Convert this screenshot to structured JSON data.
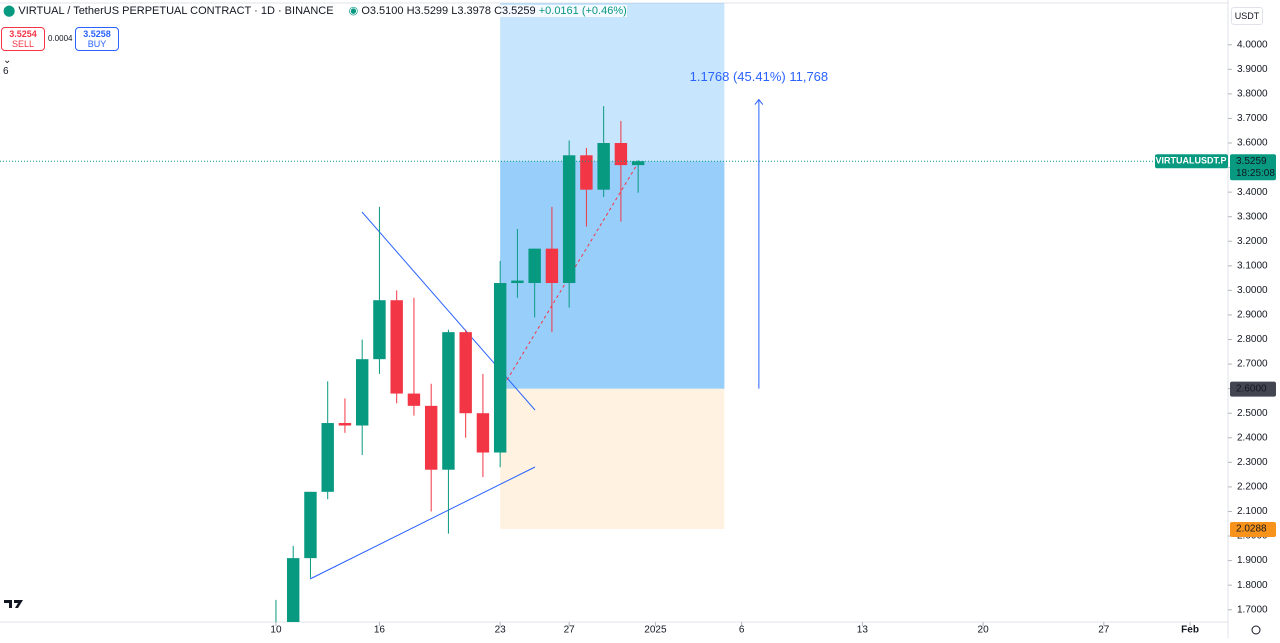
{
  "header": {
    "title": "VIRTUAL / TetherUS PERPETUAL CONTRACT · 1D · BINANCE",
    "open": "O3.5100",
    "high": "H3.5299",
    "low": "L3.3978",
    "close": "C3.5259",
    "change": "+0.0161 (+0.46%)",
    "sell_price": "3.5254",
    "sell": "SELL",
    "spread": "0.0004",
    "buy_price": "3.5258",
    "buy": "BUY",
    "indicators": "6",
    "currency": "USDT"
  },
  "chart_data": {
    "type": "candlestick",
    "x": [
      10,
      11,
      12,
      13,
      14,
      15,
      16,
      17,
      18,
      19,
      20,
      21,
      22,
      23,
      24,
      25,
      26,
      27,
      28,
      29,
      30,
      31
    ],
    "open": [
      1.6,
      1.62,
      1.91,
      2.18,
      2.46,
      2.45,
      2.72,
      2.96,
      2.58,
      2.53,
      2.27,
      2.83,
      2.5,
      2.34,
      3.03,
      3.03,
      3.17,
      3.03,
      3.55,
      3.41,
      3.6,
      3.51
    ],
    "high": [
      1.74,
      1.96,
      2.18,
      2.63,
      2.56,
      2.8,
      3.34,
      3.0,
      2.97,
      2.62,
      2.84,
      2.84,
      2.66,
      3.12,
      3.25,
      3.17,
      3.34,
      3.61,
      3.58,
      3.75,
      3.69,
      3.5299
    ],
    "low": [
      1.55,
      1.6,
      1.83,
      2.15,
      2.42,
      2.33,
      2.66,
      2.54,
      2.49,
      2.1,
      2.01,
      2.4,
      2.24,
      2.28,
      2.97,
      2.89,
      2.83,
      2.93,
      3.26,
      3.38,
      3.28,
      3.3978
    ],
    "close": [
      1.62,
      1.91,
      2.18,
      2.46,
      2.45,
      2.72,
      2.96,
      2.58,
      2.53,
      2.27,
      2.83,
      2.5,
      2.34,
      3.03,
      3.04,
      3.17,
      3.03,
      3.55,
      3.41,
      3.6,
      3.51,
      3.5259
    ],
    "up_color": "#089981",
    "down_color": "#f23645",
    "xlim": [
      -6,
      65.2
    ],
    "ylim": [
      1.65,
      4.17
    ],
    "xticks": [
      {
        "value": 10,
        "label": "10"
      },
      {
        "value": 16,
        "label": "16"
      },
      {
        "value": 23,
        "label": "23"
      },
      {
        "value": 27,
        "label": "27"
      },
      {
        "value": 32,
        "label": "2025"
      },
      {
        "value": 37,
        "label": "6"
      },
      {
        "value": 44,
        "label": "13"
      },
      {
        "value": 51,
        "label": "20"
      },
      {
        "value": 58,
        "label": "27"
      },
      {
        "value": 63,
        "label": "Feb"
      }
    ],
    "yticks": [
      {
        "value": 1.7,
        "label": "1.7000"
      },
      {
        "value": 1.8,
        "label": "1.8000"
      },
      {
        "value": 1.9,
        "label": "1.9000"
      },
      {
        "value": 2.0,
        "label": "2.0000"
      },
      {
        "value": 2.1,
        "label": "2.1000"
      },
      {
        "value": 2.2,
        "label": "2.2000"
      },
      {
        "value": 2.3,
        "label": "2.3000"
      },
      {
        "value": 2.4,
        "label": "2.4000"
      },
      {
        "value": 2.5,
        "label": "2.5000"
      },
      {
        "value": 2.6,
        "label": "2.6000"
      },
      {
        "value": 2.7,
        "label": "2.7000"
      },
      {
        "value": 2.8,
        "label": "2.8000"
      },
      {
        "value": 2.9,
        "label": "2.9000"
      },
      {
        "value": 3.0,
        "label": "3.0000"
      },
      {
        "value": 3.1,
        "label": "3.1000"
      },
      {
        "value": 3.2,
        "label": "3.2000"
      },
      {
        "value": 3.3,
        "label": "3.3000"
      },
      {
        "value": 3.4,
        "label": "3.4000"
      },
      {
        "value": 3.5,
        "label": "3.5000"
      },
      {
        "value": 3.6,
        "label": "3.6000"
      },
      {
        "value": 3.7,
        "label": "3.7000"
      },
      {
        "value": 3.8,
        "label": "3.8000"
      },
      {
        "value": 3.9,
        "label": "3.9000"
      },
      {
        "value": 4.0,
        "label": "4.0000"
      }
    ],
    "last_price": {
      "value": 3.5259,
      "label": "3.5259",
      "symbol": "VIRTUALUSDT.P",
      "countdown": "18:25:08"
    },
    "position": {
      "start": 23,
      "end": 36,
      "entry": {
        "value": 2.6,
        "label": "2.6000"
      },
      "stop": {
        "value": 2.0288,
        "label": "2.0288"
      }
    },
    "measure": {
      "x": 38,
      "change": 1.1768,
      "text": "1.1768 (45.41%) 11,768"
    }
  }
}
